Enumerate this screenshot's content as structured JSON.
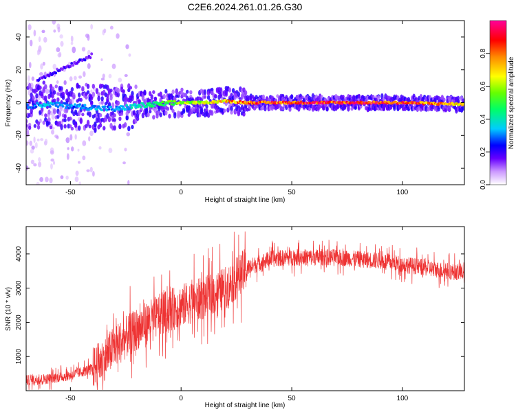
{
  "figure": {
    "title": "C2E6.2024.261.01.26.G30"
  },
  "chart_data": [
    {
      "type": "heatmap",
      "xlabel": "Height of straight line (km)",
      "ylabel": "Frequency (Hz)",
      "xlim": [
        -70,
        128
      ],
      "ylim": [
        -50,
        50
      ],
      "xticks": [
        -50,
        0,
        50,
        100
      ],
      "yticks": [
        -40,
        -20,
        0,
        20,
        40
      ],
      "colorbar": {
        "label": "Normalized spectral amplitude",
        "range": [
          0,
          1
        ],
        "ticks": [
          "0.0",
          "0.2",
          "0.4",
          "0.6",
          "0.8"
        ],
        "colors": [
          "#ffffff",
          "#cc99ff",
          "#6600ff",
          "#0000ff",
          "#00ccff",
          "#00ff66",
          "#66ff00",
          "#ffff00",
          "#ff8800",
          "#ff0000",
          "#ff0099"
        ]
      },
      "ridge": {
        "description_points_x": [
          -70,
          -60,
          -50,
          -40,
          -30,
          -20,
          -10,
          0,
          10,
          20,
          30,
          50,
          70,
          100,
          128
        ],
        "frequency": [
          -2,
          -1,
          -2,
          -3,
          -4,
          -2,
          -1,
          0,
          0,
          1,
          0,
          0,
          0,
          0,
          -1
        ],
        "amplitude": [
          0.3,
          0.35,
          0.3,
          0.35,
          0.3,
          0.4,
          0.5,
          0.6,
          0.65,
          0.75,
          0.85,
          0.9,
          0.9,
          0.9,
          0.7
        ]
      },
      "secondary_branch": {
        "x": [
          -65,
          -60,
          -55,
          -50,
          -45,
          -40
        ],
        "frequency": [
          14,
          17,
          20,
          23,
          26,
          29
        ]
      }
    },
    {
      "type": "line",
      "xlabel": "Height of straight line (km)",
      "ylabel": "SNR (10 * v/v)",
      "xlim": [
        -70,
        128
      ],
      "ylim": [
        0,
        4800
      ],
      "xticks": [
        -50,
        0,
        50,
        100
      ],
      "yticks": [
        1000,
        2000,
        3000,
        4000
      ],
      "series_color": "#ee3333",
      "trend": {
        "x": [
          -70,
          -60,
          -50,
          -40,
          -35,
          -30,
          -20,
          -10,
          0,
          10,
          20,
          30,
          40,
          50,
          60,
          70,
          80,
          90,
          100,
          110,
          120,
          128
        ],
        "y": [
          300,
          350,
          450,
          650,
          900,
          1300,
          1800,
          2200,
          2500,
          2700,
          3000,
          3600,
          3850,
          3900,
          3900,
          3900,
          3850,
          3800,
          3700,
          3600,
          3500,
          3450
        ]
      }
    }
  ]
}
